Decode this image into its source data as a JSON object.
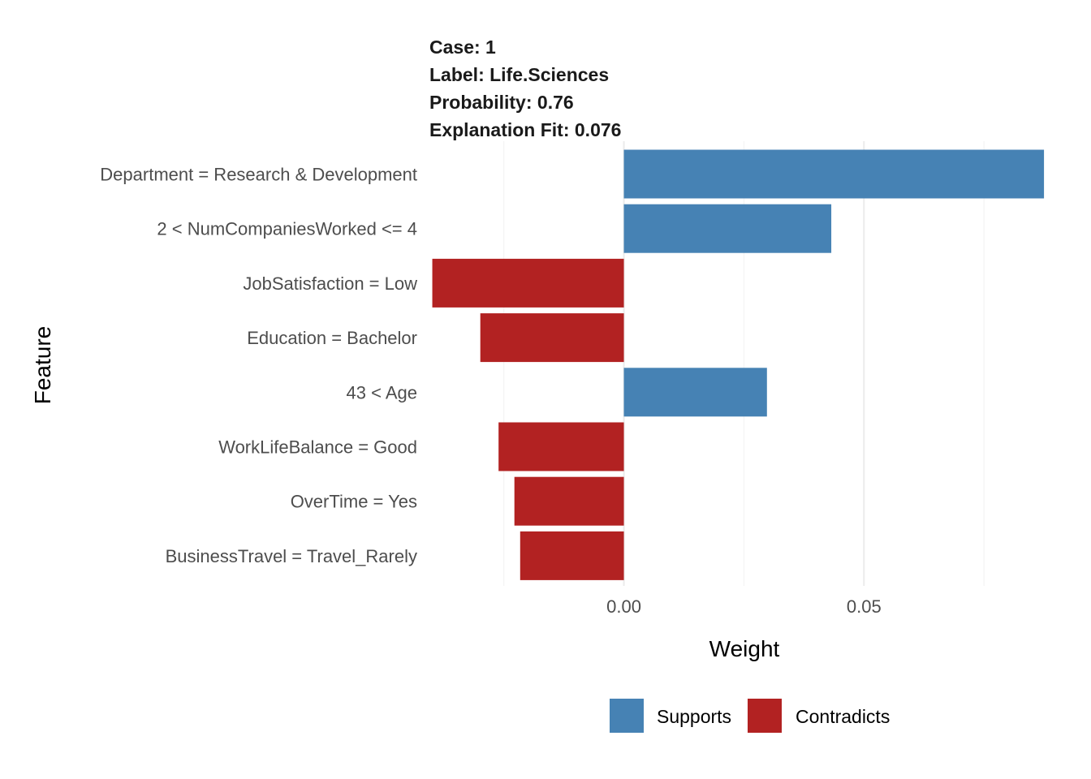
{
  "chart_data": {
    "type": "bar",
    "orientation": "horizontal",
    "title_lines": [
      "Case: 1",
      "Label: Life.Sciences",
      "Probability: 0.76",
      "Explanation Fit: 0.076"
    ],
    "xlabel": "Weight",
    "ylabel": "Feature",
    "xlim": [
      -0.0405,
      0.0885
    ],
    "x_ticks": [
      {
        "value": 0.0,
        "label": "0.00"
      },
      {
        "value": 0.05,
        "label": "0.05"
      }
    ],
    "x_minor_ticks": [
      -0.025,
      0.025,
      0.075
    ],
    "grid": true,
    "categories": [
      "Department = Research & Development",
      "2 < NumCompaniesWorked <= 4",
      "JobSatisfaction = Low",
      "Education = Bachelor",
      "43 < Age",
      "WorkLifeBalance = Good",
      "OverTime = Yes",
      "BusinessTravel = Travel_Rarely"
    ],
    "values": [
      0.0875,
      0.0432,
      -0.0399,
      -0.0299,
      0.0298,
      -0.0261,
      -0.0228,
      -0.0216
    ],
    "bar_types": [
      "Supports",
      "Supports",
      "Contradicts",
      "Contradicts",
      "Supports",
      "Contradicts",
      "Contradicts",
      "Contradicts"
    ],
    "legend": {
      "position": "bottom",
      "entries": [
        {
          "label": "Supports",
          "color": "#4682B4"
        },
        {
          "label": "Contradicts",
          "color": "#B22222"
        }
      ]
    }
  }
}
